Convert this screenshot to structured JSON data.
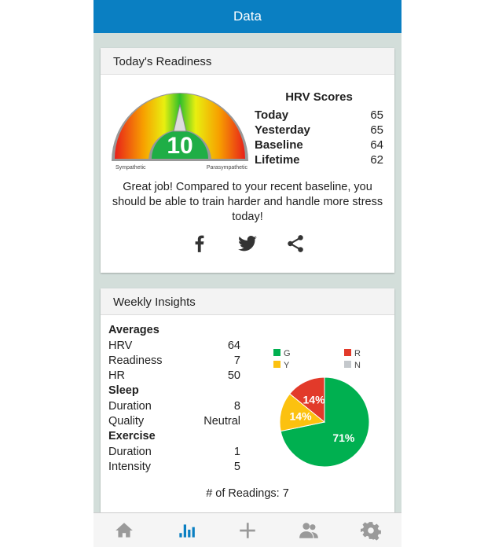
{
  "header": {
    "title": "Data"
  },
  "readiness": {
    "title": "Today's Readiness",
    "score": "10",
    "gauge_left": "Sympathetic",
    "gauge_right": "Parasympathetic",
    "hrv_title": "HRV Scores",
    "hrv": [
      {
        "label": "Today",
        "value": "65"
      },
      {
        "label": "Yesterday",
        "value": "65"
      },
      {
        "label": "Baseline",
        "value": "64"
      },
      {
        "label": "Lifetime",
        "value": "62"
      }
    ],
    "message": "Great job! Compared to your recent baseline, you should be able to train harder and handle more stress today!",
    "share": [
      "facebook-icon",
      "twitter-icon",
      "share-icon"
    ]
  },
  "weekly": {
    "title": "Weekly Insights",
    "averages_label": "Averages",
    "averages": [
      {
        "label": "HRV",
        "value": "64"
      },
      {
        "label": "Readiness",
        "value": "7"
      },
      {
        "label": "HR",
        "value": "50"
      }
    ],
    "sleep_label": "Sleep",
    "sleep": [
      {
        "label": "Duration",
        "value": "8"
      },
      {
        "label": "Quality",
        "value": "Neutral"
      }
    ],
    "exercise_label": "Exercise",
    "exercise": [
      {
        "label": "Duration",
        "value": "1"
      },
      {
        "label": "Intensity",
        "value": "5"
      }
    ],
    "readings": "# of Readings: 7"
  },
  "chart_data": {
    "type": "pie",
    "legend": [
      {
        "name": "G",
        "color": "#00b050"
      },
      {
        "name": "R",
        "color": "#e23a2a"
      },
      {
        "name": "Y",
        "color": "#fcc10f"
      },
      {
        "name": "N",
        "color": "#c4c8cc"
      }
    ],
    "slices": [
      {
        "name": "G",
        "value": 71,
        "label": "71%",
        "color": "#00b050"
      },
      {
        "name": "Y",
        "value": 14,
        "label": "14%",
        "color": "#fcc10f"
      },
      {
        "name": "R",
        "value": 14,
        "label": "14%",
        "color": "#e23a2a"
      }
    ]
  },
  "nav": [
    {
      "icon": "home-icon"
    },
    {
      "icon": "chart-icon",
      "active": true
    },
    {
      "icon": "plus-icon"
    },
    {
      "icon": "users-icon"
    },
    {
      "icon": "gear-icon"
    }
  ],
  "colors": {
    "primary": "#0a7fc2",
    "nav_inactive": "#9a9a9a"
  }
}
